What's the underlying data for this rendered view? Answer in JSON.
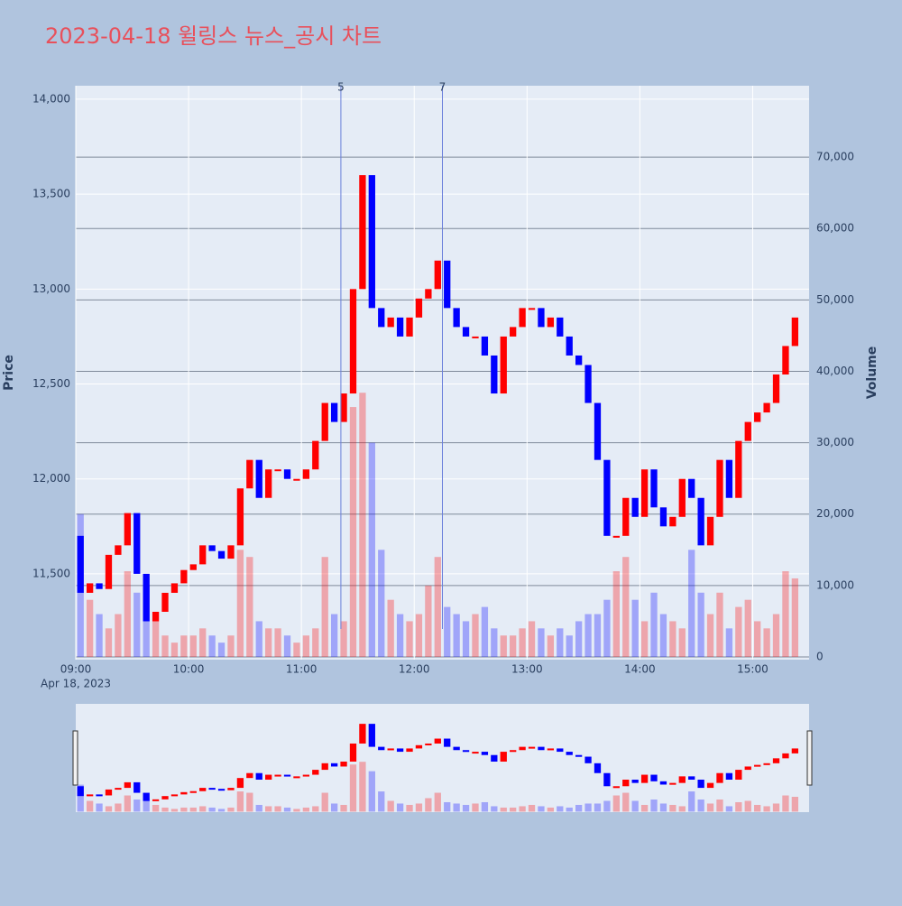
{
  "chart_data": {
    "type": "candlestick",
    "title": "2023-04-18 윌링스 뉴스_공시 차트",
    "x_label_date": "Apr 18, 2023",
    "y_label": "Price",
    "y2_label": "Volume",
    "x": [
      "09:00",
      "09:05",
      "09:10",
      "09:15",
      "09:20",
      "09:25",
      "09:30",
      "09:35",
      "09:40",
      "09:45",
      "09:50",
      "09:55",
      "10:00",
      "10:05",
      "10:10",
      "10:15",
      "10:20",
      "10:25",
      "10:30",
      "10:35",
      "10:40",
      "10:45",
      "10:50",
      "10:55",
      "11:00",
      "11:05",
      "11:10",
      "11:15",
      "11:20",
      "11:25",
      "11:30",
      "11:35",
      "11:40",
      "11:45",
      "11:50",
      "11:55",
      "12:00",
      "12:05",
      "12:10",
      "12:15",
      "12:20",
      "12:25",
      "12:30",
      "12:35",
      "12:40",
      "12:45",
      "12:50",
      "12:55",
      "13:00",
      "13:05",
      "13:10",
      "13:15",
      "13:20",
      "13:25",
      "13:30",
      "13:35",
      "13:40",
      "13:45",
      "13:50",
      "13:55",
      "14:00",
      "14:05",
      "14:10",
      "14:15",
      "14:20",
      "14:25",
      "14:30",
      "14:35",
      "14:40",
      "14:45",
      "14:50",
      "14:55",
      "15:00",
      "15:05",
      "15:10",
      "15:15",
      "15:20"
    ],
    "open": [
      11700,
      11400,
      11450,
      11420,
      11600,
      11650,
      11820,
      11500,
      11250,
      11300,
      11400,
      11450,
      11520,
      11550,
      11650,
      11620,
      11580,
      11650,
      11950,
      12100,
      11900,
      12050,
      12050,
      12000,
      12000,
      12050,
      12200,
      12400,
      12300,
      12450,
      13000,
      13600,
      12900,
      12800,
      12850,
      12750,
      12850,
      12950,
      13000,
      13150,
      12900,
      12800,
      12750,
      12750,
      12650,
      12450,
      12750,
      12800,
      12900,
      12900,
      12800,
      12850,
      12750,
      12650,
      12600,
      12400,
      12100,
      11700,
      11700,
      11900,
      11800,
      12050,
      11850,
      11750,
      11800,
      12000,
      11900,
      11650,
      11800,
      12100,
      11900,
      12200,
      12300,
      12350,
      12400,
      12550,
      12700
    ],
    "close": [
      11400,
      11450,
      11420,
      11600,
      11650,
      11820,
      11500,
      11250,
      11300,
      11400,
      11450,
      11520,
      11550,
      11650,
      11620,
      11580,
      11650,
      11950,
      12100,
      11900,
      12050,
      12050,
      12000,
      12000,
      12050,
      12200,
      12400,
      12300,
      12450,
      13000,
      13600,
      12900,
      12800,
      12850,
      12750,
      12850,
      12950,
      13000,
      13150,
      12900,
      12800,
      12750,
      12750,
      12650,
      12450,
      12750,
      12800,
      12900,
      12900,
      12800,
      12850,
      12750,
      12650,
      12600,
      12400,
      12100,
      11700,
      11700,
      11900,
      11800,
      12050,
      11850,
      11750,
      11800,
      12000,
      11900,
      11650,
      11800,
      12100,
      11900,
      12200,
      12300,
      12350,
      12400,
      12550,
      12700,
      12850
    ],
    "volume": [
      20000,
      8000,
      6000,
      4000,
      6000,
      12000,
      9000,
      10000,
      5000,
      3000,
      2000,
      3000,
      3000,
      4000,
      3000,
      2000,
      3000,
      15000,
      14000,
      5000,
      4000,
      4000,
      3000,
      2000,
      3000,
      4000,
      14000,
      6000,
      5000,
      35000,
      37000,
      30000,
      15000,
      8000,
      6000,
      5000,
      6000,
      10000,
      14000,
      7000,
      6000,
      5000,
      6000,
      7000,
      4000,
      3000,
      3000,
      4000,
      5000,
      4000,
      3000,
      4000,
      3000,
      5000,
      6000,
      6000,
      8000,
      12000,
      14000,
      8000,
      5000,
      9000,
      6000,
      5000,
      4000,
      15000,
      9000,
      6000,
      9000,
      4000,
      7000,
      8000,
      5000,
      4000,
      6000,
      12000,
      11000
    ],
    "up_color": "#ff0000",
    "down_color": "#0000ff",
    "xlim": [
      "09:00",
      "15:30"
    ],
    "xticks": [
      "09:00",
      "10:00",
      "11:00",
      "12:00",
      "13:00",
      "14:00",
      "15:00"
    ],
    "ylim": [
      11048,
      14071
    ],
    "yticks": [
      {
        "value": 11500,
        "label": "11,500"
      },
      {
        "value": 12000,
        "label": "12,000"
      },
      {
        "value": 12500,
        "label": "12,500"
      },
      {
        "value": 13000,
        "label": "13,000"
      },
      {
        "value": 13500,
        "label": "13,500"
      },
      {
        "value": 14000,
        "label": "14,000"
      }
    ],
    "y2lim": [
      -380,
      80000
    ],
    "y2ticks": [
      0,
      {
        "value": 10000,
        "label": "10,000"
      },
      {
        "value": 20000,
        "label": "20,000"
      },
      {
        "value": 30000,
        "label": "30,000"
      },
      {
        "value": 40000,
        "label": "40,000"
      },
      {
        "value": 50000,
        "label": "50,000"
      },
      {
        "value": 60000,
        "label": "60,000"
      },
      {
        "value": 70000,
        "label": "70,000"
      }
    ],
    "annotations": [
      {
        "x": "11:21",
        "text": "5"
      },
      {
        "x": "12:15",
        "text": "7"
      }
    ],
    "grid": true
  }
}
